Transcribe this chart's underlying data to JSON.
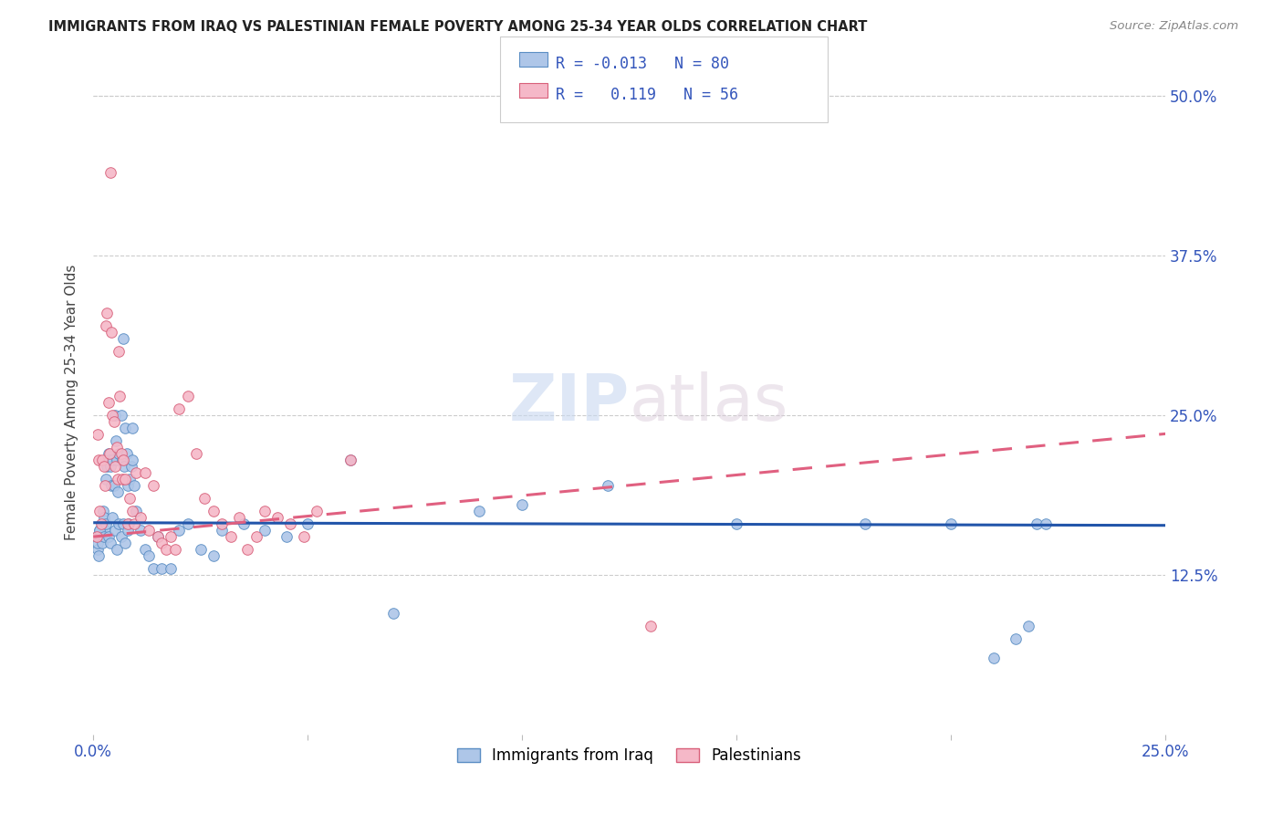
{
  "title": "IMMIGRANTS FROM IRAQ VS PALESTINIAN FEMALE POVERTY AMONG 25-34 YEAR OLDS CORRELATION CHART",
  "source": "Source: ZipAtlas.com",
  "ylabel": "Female Poverty Among 25-34 Year Olds",
  "xlim": [
    0.0,
    0.25
  ],
  "ylim": [
    0.0,
    0.52
  ],
  "xtick_positions": [
    0.0,
    0.05,
    0.1,
    0.15,
    0.2,
    0.25
  ],
  "xtick_labels": [
    "0.0%",
    "",
    "",
    "",
    "",
    "25.0%"
  ],
  "ytick_vals": [
    0.125,
    0.25,
    0.375,
    0.5
  ],
  "ytick_labels": [
    "12.5%",
    "25.0%",
    "37.5%",
    "50.0%"
  ],
  "color_iraq_fill": "#aec6e8",
  "color_iraq_edge": "#5b8ec4",
  "color_pal_fill": "#f5b8c8",
  "color_pal_edge": "#d8607a",
  "line_iraq_color": "#2255aa",
  "line_pal_color": "#e06080",
  "legend_r_iraq": "-0.013",
  "legend_n_iraq": "80",
  "legend_r_pal": "0.119",
  "legend_n_pal": "56",
  "watermark_zip": "ZIP",
  "watermark_atlas": "atlas",
  "iraq_x": [
    0.0008,
    0.001,
    0.0012,
    0.0015,
    0.0018,
    0.002,
    0.0022,
    0.0025,
    0.0028,
    0.003,
    0.0032,
    0.0035,
    0.0038,
    0.004,
    0.0042,
    0.0045,
    0.0048,
    0.005,
    0.0052,
    0.0055,
    0.0058,
    0.006,
    0.0065,
    0.0068,
    0.007,
    0.0072,
    0.0075,
    0.0078,
    0.008,
    0.0082,
    0.0085,
    0.0088,
    0.009,
    0.0092,
    0.0095,
    0.001,
    0.0015,
    0.002,
    0.0025,
    0.003,
    0.0035,
    0.004,
    0.0045,
    0.005,
    0.0055,
    0.006,
    0.0065,
    0.007,
    0.0075,
    0.008,
    0.01,
    0.011,
    0.012,
    0.013,
    0.014,
    0.015,
    0.016,
    0.018,
    0.02,
    0.022,
    0.025,
    0.028,
    0.03,
    0.035,
    0.04,
    0.045,
    0.05,
    0.06,
    0.07,
    0.09,
    0.1,
    0.12,
    0.15,
    0.18,
    0.2,
    0.21,
    0.215,
    0.218,
    0.22,
    0.222
  ],
  "iraq_y": [
    0.155,
    0.145,
    0.14,
    0.16,
    0.155,
    0.165,
    0.175,
    0.17,
    0.16,
    0.2,
    0.21,
    0.22,
    0.215,
    0.21,
    0.195,
    0.215,
    0.195,
    0.25,
    0.23,
    0.215,
    0.19,
    0.22,
    0.25,
    0.215,
    0.31,
    0.21,
    0.24,
    0.22,
    0.195,
    0.165,
    0.2,
    0.21,
    0.24,
    0.215,
    0.195,
    0.15,
    0.16,
    0.15,
    0.155,
    0.165,
    0.155,
    0.15,
    0.17,
    0.16,
    0.145,
    0.165,
    0.155,
    0.165,
    0.15,
    0.16,
    0.175,
    0.16,
    0.145,
    0.14,
    0.13,
    0.155,
    0.13,
    0.13,
    0.16,
    0.165,
    0.145,
    0.14,
    0.16,
    0.165,
    0.16,
    0.155,
    0.165,
    0.215,
    0.095,
    0.175,
    0.18,
    0.195,
    0.165,
    0.165,
    0.165,
    0.06,
    0.075,
    0.085,
    0.165,
    0.165
  ],
  "pal_x": [
    0.0008,
    0.001,
    0.0012,
    0.0015,
    0.0018,
    0.002,
    0.0025,
    0.0028,
    0.003,
    0.0032,
    0.0035,
    0.0038,
    0.004,
    0.0042,
    0.0045,
    0.0048,
    0.005,
    0.0055,
    0.0058,
    0.006,
    0.0062,
    0.0065,
    0.0068,
    0.007,
    0.0075,
    0.008,
    0.0085,
    0.009,
    0.0095,
    0.01,
    0.011,
    0.012,
    0.013,
    0.014,
    0.015,
    0.016,
    0.017,
    0.018,
    0.019,
    0.02,
    0.022,
    0.024,
    0.026,
    0.028,
    0.03,
    0.032,
    0.034,
    0.036,
    0.038,
    0.04,
    0.043,
    0.046,
    0.049,
    0.052,
    0.06,
    0.13
  ],
  "pal_y": [
    0.155,
    0.235,
    0.215,
    0.175,
    0.165,
    0.215,
    0.21,
    0.195,
    0.32,
    0.33,
    0.26,
    0.22,
    0.44,
    0.315,
    0.25,
    0.245,
    0.21,
    0.225,
    0.2,
    0.3,
    0.265,
    0.22,
    0.2,
    0.215,
    0.2,
    0.165,
    0.185,
    0.175,
    0.165,
    0.205,
    0.17,
    0.205,
    0.16,
    0.195,
    0.155,
    0.15,
    0.145,
    0.155,
    0.145,
    0.255,
    0.265,
    0.22,
    0.185,
    0.175,
    0.165,
    0.155,
    0.17,
    0.145,
    0.155,
    0.175,
    0.17,
    0.165,
    0.155,
    0.175,
    0.215,
    0.085
  ]
}
